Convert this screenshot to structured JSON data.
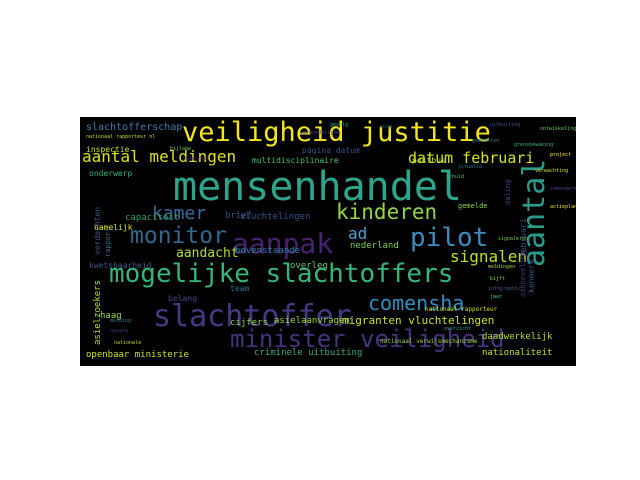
{
  "word_cloud": {
    "background": "#000000",
    "palette": [
      "#f2e51d",
      "#35b779",
      "#2a9a8a",
      "#3b528b",
      "#46327e",
      "#440154",
      "#90d743",
      "#21918c"
    ],
    "words": [
      {
        "text": "mensenhandel",
        "color": "#2ca58d"
      },
      {
        "text": "veiligheid justitie",
        "color": "#f2e51d"
      },
      {
        "text": "mogelijke slachtoffers",
        "color": "#35b779"
      },
      {
        "text": "slachtoffer",
        "color": "#443a83"
      },
      {
        "text": "minister veiligheid",
        "color": "#46327e"
      },
      {
        "text": "aanpak",
        "color": "#482173"
      },
      {
        "text": "aantal",
        "color": "#2a9a8a"
      },
      {
        "text": "kinderen",
        "color": "#90d743"
      },
      {
        "text": "monitor",
        "color": "#31688e"
      },
      {
        "text": "pilot",
        "color": "#3e8bbd"
      },
      {
        "text": "aantal meldingen",
        "color": "#dde318"
      },
      {
        "text": "kamer",
        "color": "#3b6aa0"
      },
      {
        "text": "comensha",
        "color": "#2f8ec0"
      },
      {
        "text": "datum februari",
        "color": "#d8e219"
      },
      {
        "text": "signalen",
        "color": "#c0df25"
      },
      {
        "text": "ad",
        "color": "#4a9fd1"
      },
      {
        "text": "aandacht",
        "color": "#b5de2b"
      },
      {
        "text": "migranten vluchtelingen",
        "color": "#cde11d"
      },
      {
        "text": "slachtofferschap",
        "color": "#3b7fb0"
      },
      {
        "text": "capaciteit",
        "color": "#31a354"
      },
      {
        "text": "criminele uitbuiting",
        "color": "#3aa889"
      },
      {
        "text": "openbaar ministerie",
        "color": "#d2e21b"
      },
      {
        "text": "nationaliteit",
        "color": "#c7e020"
      },
      {
        "text": "daadwerkelijk",
        "color": "#b8de29"
      },
      {
        "text": "bovenstaande",
        "color": "#2a7fa0"
      },
      {
        "text": "vluchtelingen",
        "color": "#3b528b"
      },
      {
        "text": "asielaanvragen",
        "color": "#a0da39"
      },
      {
        "text": "cijfers",
        "color": "#8bd646"
      },
      {
        "text": "overleg",
        "color": "#5ec962"
      },
      {
        "text": "nederland",
        "color": "#7ad151"
      },
      {
        "text": "brief",
        "color": "#3b528b"
      },
      {
        "text": "haag",
        "color": "#9fda3a"
      },
      {
        "text": "belang",
        "color": "#3f4788"
      },
      {
        "text": "team",
        "color": "#2c728e"
      },
      {
        "text": "asielzoekers",
        "color": "#b2dd2d"
      },
      {
        "text": "kwetsbaarheid",
        "color": "#38598c"
      },
      {
        "text": "verdachten",
        "color": "#3b528b"
      },
      {
        "text": "namelijk",
        "color": "#e5e419"
      },
      {
        "text": "inspectie",
        "color": "#cde11d"
      },
      {
        "text": "onderwerp",
        "color": "#2fb47c"
      },
      {
        "text": "multidisciplinaire",
        "color": "#4ac16d"
      },
      {
        "text": "pagina datum",
        "color": "#3d4d8a"
      },
      {
        "text": "postbus",
        "color": "#b5de2b"
      },
      {
        "text": "gemelde",
        "color": "#8fd744"
      },
      {
        "text": "daling",
        "color": "#3e4a89"
      },
      {
        "text": "februari",
        "color": "#3a548c"
      },
      {
        "text": "kenmerk",
        "color": "#3b528b"
      },
      {
        "text": "aanbeveling",
        "color": "#46337e"
      },
      {
        "text": "rapport",
        "color": "#2c728e"
      },
      {
        "text": "nationaal rapporteur",
        "color": "#d8e219"
      },
      {
        "text": "nationaal verwijsmechanisme",
        "color": "#9bd93c"
      },
      {
        "text": "nationaal rapporteur nl",
        "color": "#bddf26"
      },
      {
        "text": "uitbuiting",
        "color": "#3b528b"
      },
      {
        "text": "signaleren",
        "color": "#6ece58"
      },
      {
        "text": "zorg",
        "color": "#31688e"
      },
      {
        "text": "meldingen",
        "color": "#a2da37"
      },
      {
        "text": "infographic",
        "color": "#365c8d"
      },
      {
        "text": "ontwikkeling",
        "color": "#5ec962"
      },
      {
        "text": "verwachting",
        "color": "#d0e11c"
      },
      {
        "text": "situatie",
        "color": "#287c8e"
      },
      {
        "text": "schuld",
        "color": "#44bf70"
      },
      {
        "text": "gemeenten",
        "color": "#2a788e"
      },
      {
        "text": "grensbewaking",
        "color": "#35b779"
      },
      {
        "text": "samenwerking",
        "color": "#414487"
      },
      {
        "text": "actieplan",
        "color": "#e5e419"
      },
      {
        "text": "gevolg",
        "color": "#22a884"
      },
      {
        "text": "vermoedelijke",
        "color": "#404588"
      },
      {
        "text": "bijlage",
        "color": "#7ad151"
      },
      {
        "text": "onderzoek",
        "color": "#482878"
      },
      {
        "text": "melding",
        "color": "#2a788e"
      },
      {
        "text": "opvang",
        "color": "#46327e"
      },
      {
        "text": "overzicht",
        "color": "#20a386"
      },
      {
        "text": "project",
        "color": "#fde725"
      },
      {
        "text": "nationale",
        "color": "#b5de2b"
      },
      {
        "text": "kijft",
        "color": "#8bd646"
      },
      {
        "text": "jaar",
        "color": "#5ec962"
      }
    ]
  }
}
